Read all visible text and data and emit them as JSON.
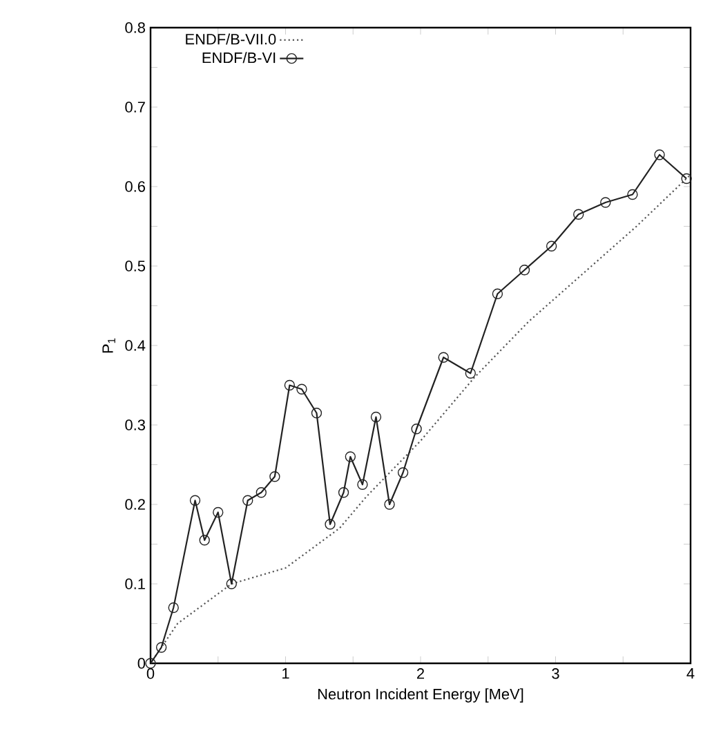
{
  "chart_data": {
    "type": "line",
    "xlabel": "Neutron Incident Energy [MeV]",
    "ylabel": "P$_{1}$",
    "legend": "top left",
    "xlim": [
      0,
      4
    ],
    "ylim": [
      0,
      0.8
    ],
    "xticks": [
      0,
      {
        "value": 0.5,
        "label": null
      },
      1,
      {
        "value": 1.5,
        "label": null
      },
      2,
      {
        "value": 2.5,
        "label": null
      },
      3,
      {
        "value": 3.5,
        "label": null
      },
      4
    ],
    "yticks": [
      0,
      {
        "value": 0.05,
        "label": null
      },
      0.1,
      {
        "value": 0.15,
        "label": null
      },
      0.2,
      {
        "value": 0.25,
        "label": null
      },
      0.3,
      {
        "value": 0.35,
        "label": null
      },
      0.4,
      {
        "value": 0.45,
        "label": null
      },
      0.5,
      {
        "value": 0.55,
        "label": null
      },
      0.6,
      {
        "value": 0.65,
        "label": null
      },
      0.7,
      {
        "value": 0.75,
        "label": null
      },
      0.8
    ],
    "series": [
      {
        "name": "ENDF/B-VII.0",
        "color": "#555555",
        "line_style": "dotted",
        "marker": "none",
        "x": [
          0,
          0.2,
          0.6,
          1.0,
          1.4,
          1.6,
          2.0,
          2.4,
          2.8,
          3.2,
          3.6,
          4.0
        ],
        "values": [
          0,
          0.05,
          0.1,
          0.12,
          0.17,
          0.21,
          0.28,
          0.36,
          0.43,
          0.49,
          0.55,
          0.615
        ]
      },
      {
        "name": "ENDF/B-VI",
        "color": "#222222",
        "line_style": "solid",
        "marker": "circle",
        "x": [
          0,
          0.08,
          0.17,
          0.33,
          0.4,
          0.5,
          0.6,
          0.72,
          0.82,
          0.92,
          1.03,
          1.12,
          1.23,
          1.33,
          1.43,
          1.48,
          1.57,
          1.67,
          1.77,
          1.87,
          1.97,
          2.17,
          2.37,
          2.57,
          2.77,
          2.97,
          3.17,
          3.37,
          3.57,
          3.77,
          3.97
        ],
        "values": [
          0,
          0.02,
          0.07,
          0.205,
          0.155,
          0.19,
          0.1,
          0.205,
          0.215,
          0.235,
          0.35,
          0.345,
          0.315,
          0.175,
          0.215,
          0.26,
          0.225,
          0.31,
          0.2,
          0.24,
          0.295,
          0.385,
          0.365,
          0.465,
          0.495,
          0.525,
          0.565,
          0.58,
          0.59,
          0.64,
          0.61
        ]
      }
    ]
  }
}
